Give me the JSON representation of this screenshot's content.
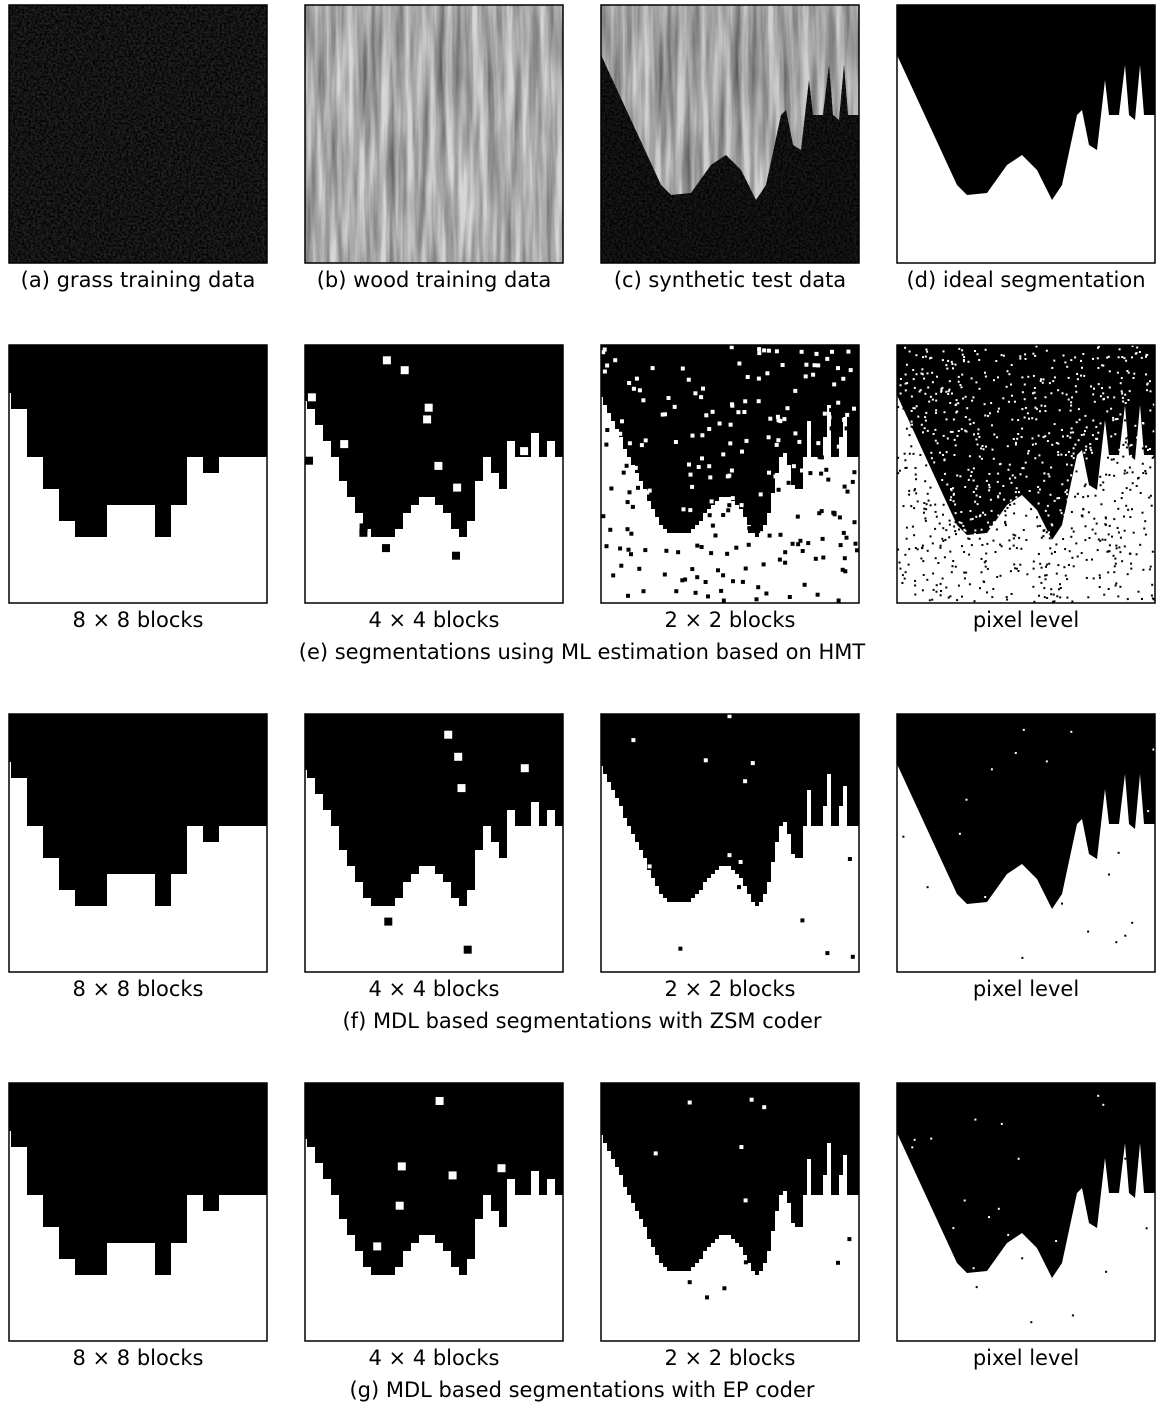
{
  "rows": [
    {
      "panels": [
        {
          "caption": "(a) grass training data"
        },
        {
          "caption": "(b) wood training data"
        },
        {
          "caption": "(c) synthetic test data"
        },
        {
          "caption": "(d) ideal segmentation"
        }
      ]
    },
    {
      "panels": [
        {
          "caption": "8 × 8 blocks"
        },
        {
          "caption": "4 × 4 blocks"
        },
        {
          "caption": "2 × 2 blocks"
        },
        {
          "caption": "pixel level"
        }
      ],
      "caption": "(e) segmentations using ML estimation based on HMT"
    },
    {
      "panels": [
        {
          "caption": "8 × 8 blocks"
        },
        {
          "caption": "4 × 4 blocks"
        },
        {
          "caption": "2 × 2 blocks"
        },
        {
          "caption": "pixel level"
        }
      ],
      "caption": "(f) MDL based segmentations with ZSM coder"
    },
    {
      "panels": [
        {
          "caption": "8 × 8 blocks"
        },
        {
          "caption": "4 × 4 blocks"
        },
        {
          "caption": "2 × 2 blocks"
        },
        {
          "caption": "pixel level"
        }
      ],
      "caption": "(g) MDL based segmentations with EP coder"
    }
  ]
}
